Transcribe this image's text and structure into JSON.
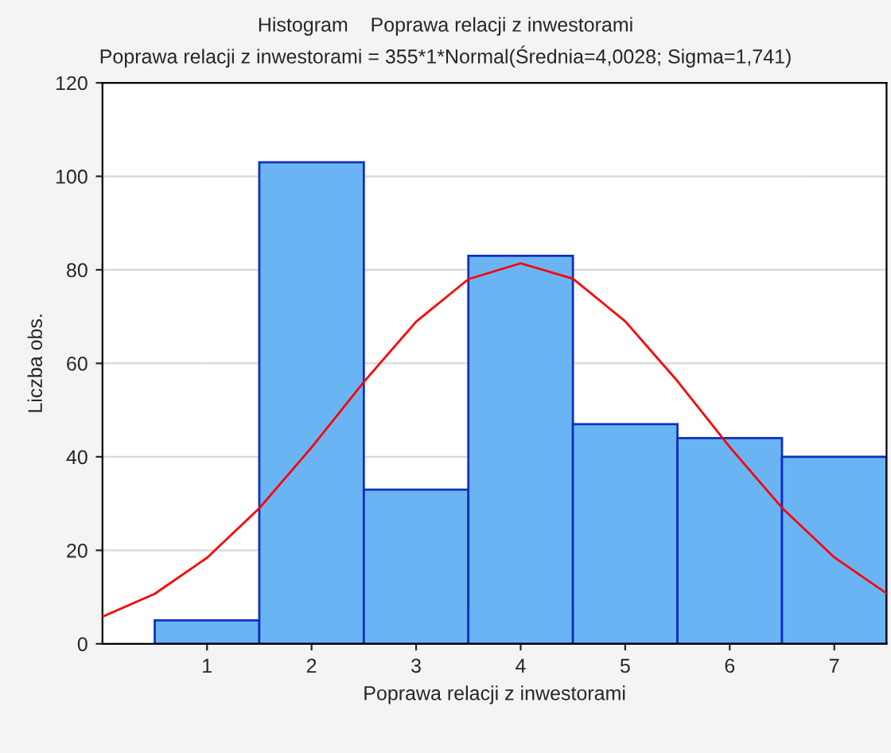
{
  "chart_data": {
    "type": "histogram",
    "title": "Histogram    Poprawa relacji z inwestorami",
    "subtitle": "Poprawa relacji z inwestorami = 355*1*Normal(Średnia=4,0028; Sigma=1,741)",
    "xlabel": "Poprawa relacji z inwestorami",
    "ylabel": "Liczba obs.",
    "bins": [
      0.5,
      1.5,
      2.5,
      3.5,
      4.5,
      5.5,
      6.5,
      7.5
    ],
    "series": [
      {
        "color": "#6ab4f4",
        "values": [
          5,
          103,
          33,
          83,
          47,
          44,
          40
        ]
      },
      {
        "type": "line",
        "color": "#ff0000",
        "x": [
          0,
          0.5,
          1,
          1.5,
          2,
          2.5,
          3,
          3.5,
          4,
          4.5,
          5,
          5.5,
          6,
          6.5,
          7,
          7.5
        ],
        "values": [
          5.8,
          10.7,
          18.4,
          29.0,
          42.0,
          56.0,
          68.9,
          78.0,
          81.4,
          78.1,
          69.0,
          56.2,
          42.1,
          29.1,
          18.5,
          10.8
        ]
      }
    ],
    "xlim": [
      0,
      7.5
    ],
    "xticks": [
      1,
      2,
      3,
      4,
      5,
      6,
      7
    ],
    "ylim": [
      0,
      120
    ],
    "yticks": [
      0,
      20,
      40,
      60,
      80,
      100,
      120
    ],
    "grid": "y"
  }
}
